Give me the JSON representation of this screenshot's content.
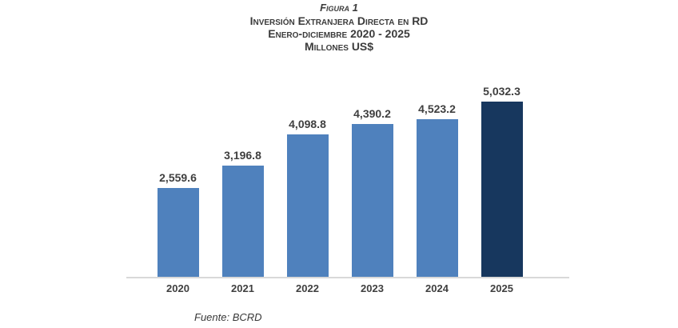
{
  "header": {
    "figure_label": "Figura 1",
    "title": "Inversión Extranjera Directa en RD",
    "period": "Enero-diciembre 2020 - 2025",
    "units": "Millones US$"
  },
  "source_note": "Fuente: BCRD",
  "chart_data": {
    "type": "bar",
    "title": "Figura 1",
    "subtitle": "Inversión Extranjera Directa en RD — Enero-diciembre 2020 - 2025",
    "ylabel": "Millones US$",
    "xlabel": "",
    "categories": [
      "2020",
      "2021",
      "2022",
      "2023",
      "2024",
      "2025"
    ],
    "values": [
      2559.6,
      3196.8,
      4098.8,
      4390.2,
      4523.2,
      5032.3
    ],
    "value_labels": [
      "2,559.6",
      "3,196.8",
      "4,098.8",
      "4,390.2",
      "4,523.2",
      "5,032.3"
    ],
    "highlight_index": 5,
    "bar_color": "#4F81BD",
    "highlight_color": "#17375E",
    "axis_line_color": "#D9D9D9",
    "ylim": [
      0,
      5032.3
    ],
    "grid": false,
    "legend": false,
    "data_labels": true
  }
}
